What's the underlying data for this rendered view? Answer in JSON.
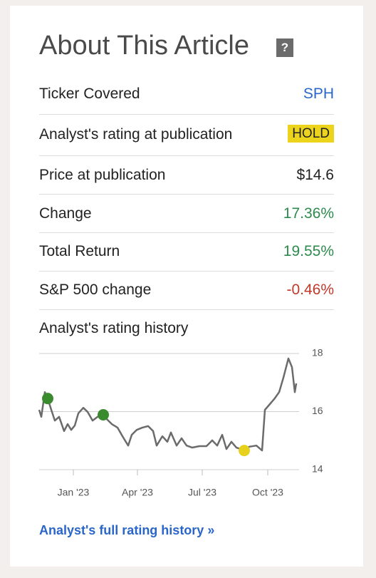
{
  "header": {
    "title": "About This Article",
    "help_icon": "?"
  },
  "rows": [
    {
      "label": "Ticker Covered",
      "value": "SPH",
      "color": "#2a66c9"
    },
    {
      "label": "Analyst's rating at publication",
      "value": "HOLD",
      "color": "#222222"
    },
    {
      "label": "Price at publication",
      "value": "$14.6",
      "color": "#222222"
    },
    {
      "label": "Change",
      "value": "17.36%",
      "color": "#2e8a4e"
    },
    {
      "label": "Total Return",
      "value": "19.55%",
      "color": "#2e8a4e"
    },
    {
      "label": "S&P 500 change",
      "value": "-0.46%",
      "color": "#c0392b"
    }
  ],
  "chart_data": {
    "type": "line",
    "title": "Analyst's rating history",
    "x": [
      -48,
      -45,
      -40,
      -36,
      -31,
      -26,
      -20,
      -13,
      -8,
      -3,
      2,
      7,
      14,
      20,
      27,
      34,
      42,
      47,
      54,
      62,
      69,
      77,
      82,
      89,
      97,
      105,
      112,
      117,
      125,
      132,
      137,
      145,
      152,
      159,
      167,
      177,
      187,
      195,
      202,
      209,
      215,
      222,
      229,
      235,
      240,
      247,
      257,
      265,
      269,
      275,
      282,
      289,
      295,
      302,
      307,
      311,
      313
    ],
    "series": [
      {
        "color": "#6b6b6b",
        "values": [
          16.06,
          15.82,
          16.67,
          16.45,
          16.06,
          15.69,
          15.82,
          15.33,
          15.57,
          15.37,
          15.52,
          15.94,
          16.13,
          15.99,
          15.69,
          15.82,
          15.89,
          15.74,
          15.57,
          15.45,
          15.15,
          14.83,
          15.2,
          15.37,
          15.45,
          15.5,
          15.33,
          14.83,
          15.15,
          14.96,
          15.28,
          14.83,
          15.08,
          14.83,
          14.76,
          14.81,
          14.81,
          15.01,
          14.83,
          15.2,
          14.71,
          14.96,
          14.76,
          14.71,
          14.66,
          14.79,
          14.83,
          14.66,
          16.06,
          16.23,
          16.43,
          16.67,
          17.17,
          17.83,
          17.53,
          16.67,
          16.97
        ]
      }
    ],
    "markers": {
      "x": [
        -36,
        42,
        240
      ],
      "values": [
        16.45,
        15.89,
        14.66
      ],
      "colors": [
        "#3a8a2e",
        "#3a8a2e",
        "#e6d21c"
      ]
    },
    "xlim": [
      -48,
      317
    ],
    "ylim": [
      14,
      18
    ],
    "yticks": [
      14,
      16,
      18
    ],
    "xticks": [
      {
        "value": 0,
        "label": "Jan '23"
      },
      {
        "value": 90,
        "label": "Apr '23"
      },
      {
        "value": 181,
        "label": "Jul '23"
      },
      {
        "value": 273,
        "label": "Oct '23"
      }
    ],
    "grid": true
  },
  "link": "Analyst's full rating history »"
}
